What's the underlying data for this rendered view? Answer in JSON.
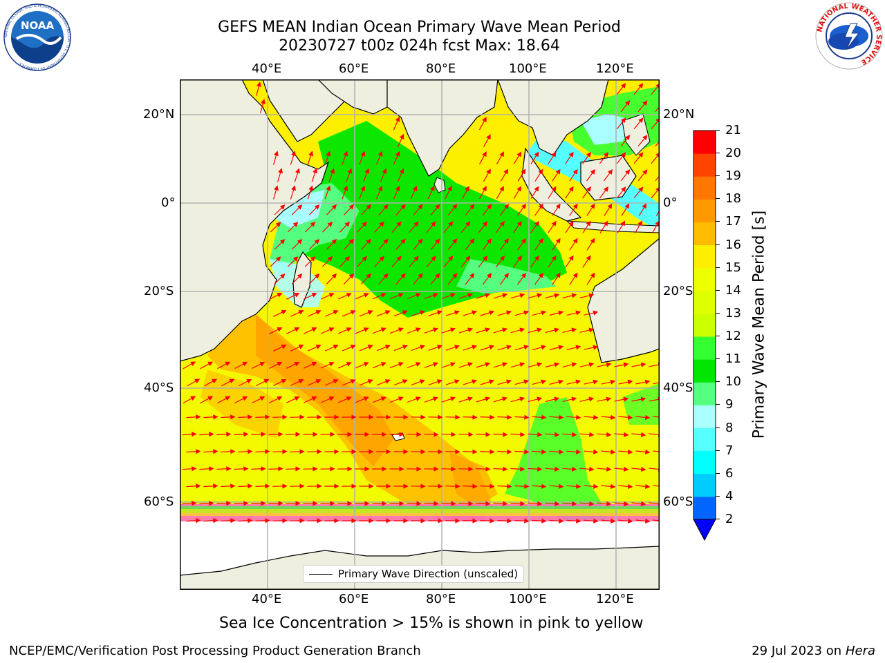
{
  "header": {
    "title_line1": "GEFS MEAN Indian Ocean Primary Wave Mean Period",
    "title_line2": "20230727 t00z 024h fcst   Max: 18.64"
  },
  "map": {
    "lon_ticks_top": [
      "40°E",
      "60°E",
      "80°E",
      "100°E",
      "120°E"
    ],
    "lon_ticks_bottom": [
      "40°E",
      "60°E",
      "80°E",
      "100°E",
      "120°E"
    ],
    "lat_ticks_left": [
      "20°N",
      "0°",
      "20°S",
      "40°S",
      "60°S"
    ],
    "lat_ticks_right": [
      "20°N",
      "0°",
      "20°S",
      "40°S",
      "60°S"
    ],
    "legend_label": "Primary Wave Direction (unscaled)",
    "colors": {
      "land": "#efefe0",
      "ocean_sea_ice_free": "#ffffff",
      "arrows": "#ff0000",
      "grid": "#b0b0b0"
    }
  },
  "colorbar": {
    "label": "Primary Wave Mean Period [s]",
    "tick_labels": [
      "2",
      "4",
      "6",
      "7",
      "8",
      "9",
      "10",
      "11",
      "12",
      "13",
      "14",
      "15",
      "16",
      "17",
      "18",
      "19",
      "20",
      "21"
    ],
    "bands": [
      {
        "from": 2,
        "to": 4,
        "color": "#0066ff"
      },
      {
        "from": 4,
        "to": 6,
        "color": "#00ccff"
      },
      {
        "from": 6,
        "to": 7,
        "color": "#00ffff"
      },
      {
        "from": 7,
        "to": 8,
        "color": "#55ffff"
      },
      {
        "from": 8,
        "to": 9,
        "color": "#aaffff"
      },
      {
        "from": 9,
        "to": 10,
        "color": "#55ff80"
      },
      {
        "from": 10,
        "to": 11,
        "color": "#00e600"
      },
      {
        "from": 11,
        "to": 12,
        "color": "#33ff33"
      },
      {
        "from": 12,
        "to": 13,
        "color": "#ccff00"
      },
      {
        "from": 13,
        "to": 14,
        "color": "#ddff00"
      },
      {
        "from": 14,
        "to": 15,
        "color": "#eeff00"
      },
      {
        "from": 15,
        "to": 16,
        "color": "#ffee00"
      },
      {
        "from": 16,
        "to": 17,
        "color": "#ffbb00"
      },
      {
        "from": 17,
        "to": 18,
        "color": "#ff9900"
      },
      {
        "from": 18,
        "to": 19,
        "color": "#ff7700"
      },
      {
        "from": 19,
        "to": 20,
        "color": "#ff4400"
      },
      {
        "from": 20,
        "to": 21,
        "color": "#ff0000"
      }
    ],
    "extend_low_color": "#0000ff"
  },
  "caption": "Sea Ice Concentration > 15% is shown in pink to yellow",
  "footer": {
    "left": "NCEP/EMC/Verification Post Processing Product Generation Branch",
    "date": "29 Jul 2023 on ",
    "host": "Hera"
  },
  "logos": {
    "noaa_text": "NOAA",
    "noaa_ring": "NATIONAL OCEANIC AND ATMOSPHERIC ADMINISTRATION · U.S. DEPARTMENT OF COMMERCE",
    "nws_ring": "NATIONAL WEATHER SERVICE"
  }
}
